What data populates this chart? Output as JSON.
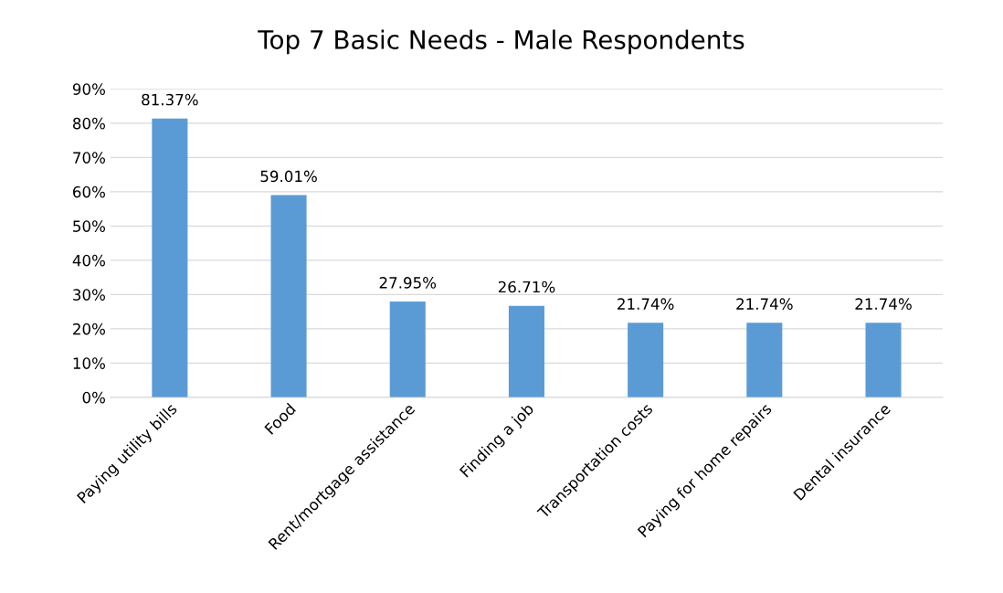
{
  "chart_data": {
    "type": "bar",
    "title": "Top 7 Basic Needs - Male Respondents",
    "categories": [
      "Paying utility bills",
      "Food",
      "Rent/mortgage assistance",
      "Finding a job",
      "Transportation costs",
      "Paying for home repairs",
      "Dental insurance"
    ],
    "values": [
      81.37,
      59.01,
      27.95,
      26.71,
      21.74,
      21.74,
      21.74
    ],
    "value_labels": [
      "81.37%",
      "59.01%",
      "27.95%",
      "26.71%",
      "21.74%",
      "21.74%",
      "21.74%"
    ],
    "color": "#5b9bd5",
    "ylim": [
      0,
      90
    ],
    "yticks": [
      {
        "value": 0,
        "label": "0%"
      },
      {
        "value": 10,
        "label": "10%"
      },
      {
        "value": 20,
        "label": "20%"
      },
      {
        "value": 30,
        "label": "30%"
      },
      {
        "value": 40,
        "label": "40%"
      },
      {
        "value": 50,
        "label": "50%"
      },
      {
        "value": 60,
        "label": "60%"
      },
      {
        "value": 70,
        "label": "70%"
      },
      {
        "value": 80,
        "label": "80%"
      },
      {
        "value": 90,
        "label": "90%"
      }
    ],
    "grid": "y",
    "legend": false
  }
}
